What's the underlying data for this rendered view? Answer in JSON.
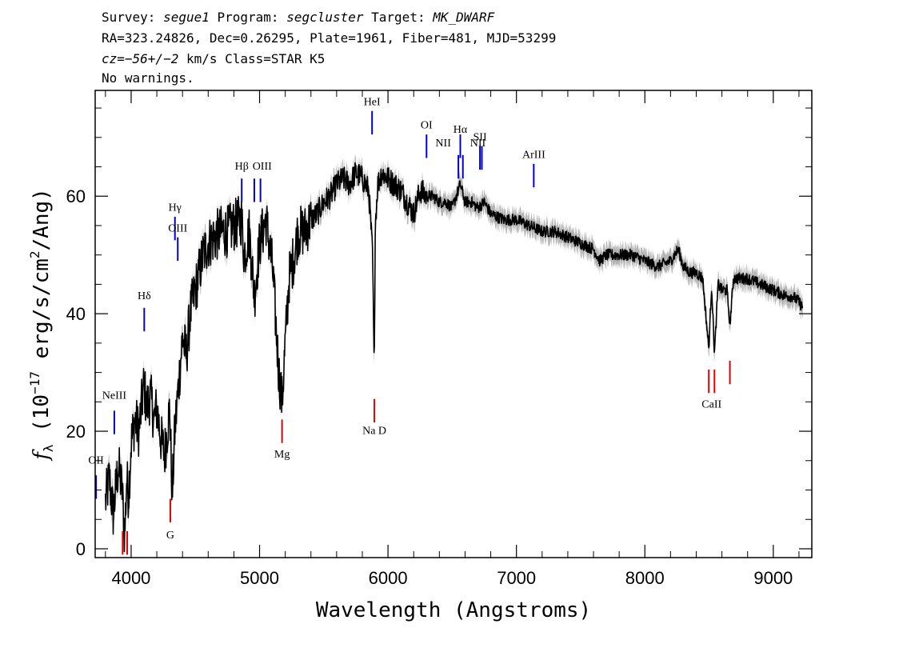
{
  "header": {
    "line1": {
      "survey_label": "Survey: ",
      "survey": "segue1",
      "program_label": " Program: ",
      "program": "segcluster",
      "target_label": " Target: ",
      "target": "MK_DWARF"
    },
    "line2": "RA=323.24826, Dec=0.26295, Plate=1961, Fiber=481, MJD=53299",
    "line3": {
      "cz_label": "cz",
      "cz_value": "=−56+/−2",
      "rest": " km/s Class=STAR K5"
    },
    "line4": "No warnings."
  },
  "colors": {
    "flux": "#000000",
    "error_band": "#b4b4b4",
    "emission": "#0000d0",
    "absorption": "#e00000"
  },
  "chart_data": {
    "type": "line",
    "xlabel": "Wavelength (Angstroms)",
    "ylabel_symbol": "f",
    "ylabel_subscript": "λ",
    "ylabel_rest_a": " (10",
    "ylabel_exp": "−17",
    "ylabel_rest_b": " erg/s/cm",
    "ylabel_exp2": "2",
    "ylabel_rest_c": "/Ang)",
    "xlim": [
      3720,
      9300
    ],
    "ylim": [
      -1.5,
      78
    ],
    "xticks": [
      4000,
      5000,
      6000,
      7000,
      8000,
      9000
    ],
    "yticks": [
      0,
      20,
      40,
      60
    ],
    "series": [
      {
        "x": [
          3800,
          3830,
          3860,
          3900,
          3930,
          3950,
          3965,
          3980,
          4000,
          4030,
          4060,
          4100,
          4120,
          4150,
          4180,
          4200,
          4230,
          4260,
          4280,
          4300,
          4320,
          4340,
          4370,
          4400,
          4430,
          4460,
          4500,
          4530,
          4560,
          4600,
          4650,
          4700,
          4750,
          4800,
          4860,
          4880,
          4920,
          4960,
          5000,
          5050,
          5100,
          5150,
          5175,
          5200,
          5230,
          5270,
          5300,
          5350,
          5400,
          5450,
          5500,
          5550,
          5600,
          5650,
          5700,
          5750,
          5800,
          5850,
          5880,
          5893,
          5900,
          5920,
          5950,
          6000,
          6050,
          6100,
          6150,
          6200,
          6250,
          6300,
          6350,
          6400,
          6450,
          6500,
          6563,
          6600,
          6650,
          6700,
          6750,
          6800,
          6900,
          7000,
          7100,
          7200,
          7300,
          7400,
          7500,
          7600,
          7650,
          7700,
          7800,
          7900,
          8000,
          8100,
          8200,
          8260,
          8300,
          8350,
          8400,
          8450,
          8498,
          8520,
          8542,
          8570,
          8600,
          8640,
          8662,
          8690,
          8750,
          8800,
          8900,
          9000,
          9100,
          9150,
          9200,
          9230
        ],
        "y": [
          8,
          12,
          6,
          14,
          10,
          2,
          12,
          9,
          18,
          22,
          20,
          28,
          24,
          26,
          22,
          24,
          19,
          16,
          20,
          24,
          9,
          20,
          28,
          36,
          33,
          40,
          44,
          47,
          50,
          52,
          53,
          54,
          54,
          55,
          56,
          50,
          54,
          43,
          52,
          56,
          48,
          30,
          25,
          35,
          46,
          50,
          54,
          54,
          56,
          57,
          59,
          60,
          62,
          63,
          62,
          64,
          63,
          61,
          50,
          29,
          55,
          62,
          64,
          63,
          62,
          61,
          59,
          57,
          61,
          60,
          60,
          59,
          59,
          58,
          62,
          59,
          59,
          58,
          59,
          57,
          56,
          56,
          55,
          54,
          54,
          53,
          52,
          51,
          49,
          50,
          50,
          50,
          49,
          48,
          49,
          51,
          48,
          47,
          47,
          46,
          34,
          45,
          33,
          45,
          44,
          44,
          38,
          46,
          46,
          46,
          45,
          44,
          43,
          43,
          42,
          41
        ],
        "band": 1.6
      }
    ],
    "line_markers": [
      {
        "label": "OII",
        "x": 3727,
        "y_bottom": 8.5,
        "y_top": 12.5,
        "kind": "emission",
        "label_y": 14.5
      },
      {
        "label": "NeIII",
        "x": 3869,
        "y_bottom": 19.5,
        "y_top": 23.5,
        "kind": "emission",
        "label_y": 25.5
      },
      {
        "label": "Hδ",
        "x": 4102,
        "y_bottom": 37,
        "y_top": 41,
        "kind": "emission",
        "label_y": 42.5,
        "greek": true
      },
      {
        "label": "Hγ",
        "x": 4341,
        "y_bottom": 52.5,
        "y_top": 56.5,
        "kind": "emission",
        "label_y": 57.5,
        "greek": true
      },
      {
        "label": "OIII",
        "x": 4363,
        "y_bottom": 49,
        "y_top": 53,
        "kind": "emission",
        "label_y": 54
      },
      {
        "label": "Hβ",
        "x": 4861,
        "y_bottom": 59,
        "y_top": 63,
        "kind": "emission",
        "label_y": 64.5,
        "greek": true
      },
      {
        "label": "OIII",
        "x": 4959,
        "y_bottom": 59,
        "y_top": 63,
        "kind": "emission",
        "label_y": -99
      },
      {
        "label": "OIII",
        "x": 5007,
        "y_bottom": 59,
        "y_top": 63,
        "kind": "emission",
        "label_y": 64.5,
        "label_x": 5020
      },
      {
        "label": "HeI",
        "x": 5876,
        "y_bottom": 70.5,
        "y_top": 74.5,
        "kind": "emission",
        "label_y": 75.5
      },
      {
        "label": "OI",
        "x": 6300,
        "y_bottom": 66.5,
        "y_top": 70.5,
        "kind": "emission",
        "label_y": 71.5
      },
      {
        "label": "NII",
        "x": 6548,
        "y_bottom": 63,
        "y_top": 67,
        "kind": "emission",
        "label_y": 68.5,
        "label_x": 6430
      },
      {
        "label": "Hα",
        "x": 6563,
        "y_bottom": 66.5,
        "y_top": 70.5,
        "kind": "emission",
        "label_y": 70.8,
        "greek": true
      },
      {
        "label": "NII",
        "x": 6583,
        "y_bottom": 63,
        "y_top": 67,
        "kind": "emission",
        "label_y": 68.5,
        "label_x": 6700
      },
      {
        "label": "SII",
        "x": 6716,
        "y_bottom": 64.5,
        "y_top": 68.5,
        "kind": "emission",
        "label_y": 69.5
      },
      {
        "label": "SII",
        "x": 6731,
        "y_bottom": 64.5,
        "y_top": 68.5,
        "kind": "emission",
        "label_y": -99
      },
      {
        "label": "ArIII",
        "x": 7135,
        "y_bottom": 61.5,
        "y_top": 65.5,
        "kind": "emission",
        "label_y": 66.5
      },
      {
        "label": "",
        "x": 3934,
        "y_bottom": -1,
        "y_top": 3,
        "kind": "absorption",
        "label_y": -99
      },
      {
        "label": "",
        "x": 3969,
        "y_bottom": -1,
        "y_top": 3,
        "kind": "absorption",
        "label_y": -99
      },
      {
        "label": "G",
        "x": 4305,
        "y_bottom": 4.5,
        "y_top": 8.5,
        "kind": "absorption",
        "label_y": 1.8
      },
      {
        "label": "Mg",
        "x": 5175,
        "y_bottom": 18,
        "y_top": 22,
        "kind": "absorption",
        "label_y": 15.5
      },
      {
        "label": "Na D",
        "x": 5894,
        "y_bottom": 21.5,
        "y_top": 25.5,
        "kind": "absorption",
        "label_y": 19.5
      },
      {
        "label": "CaII",
        "x": 8498,
        "y_bottom": 26.5,
        "y_top": 30.5,
        "kind": "absorption",
        "label_y": 24,
        "label_x": 8520
      },
      {
        "label": "",
        "x": 8542,
        "y_bottom": 26.5,
        "y_top": 30.5,
        "kind": "absorption",
        "label_y": -99
      },
      {
        "label": "",
        "x": 8662,
        "y_bottom": 28,
        "y_top": 32,
        "kind": "absorption",
        "label_y": -99
      }
    ]
  }
}
